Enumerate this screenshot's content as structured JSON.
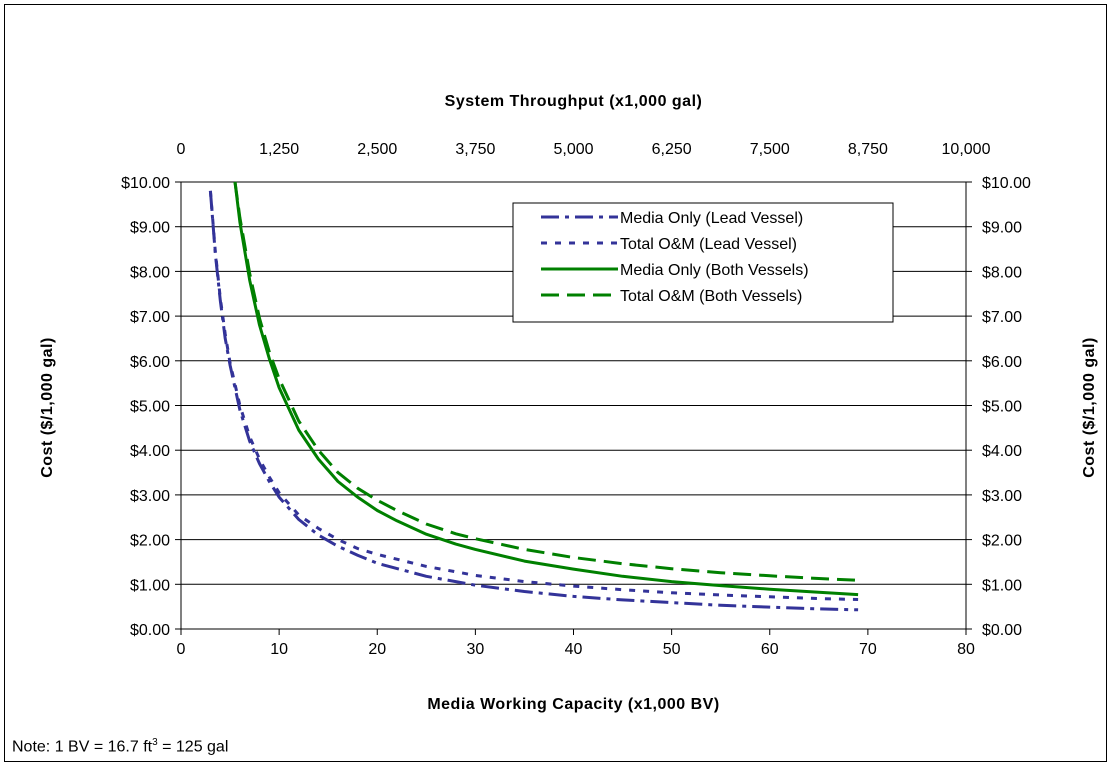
{
  "chart_data": {
    "type": "line",
    "top_axis_title": "System Throughput (x1,000 gal)",
    "top_ticks": [
      "0",
      "1,250",
      "2,500",
      "3,750",
      "5,000",
      "6,250",
      "7,500",
      "8,750",
      "10,000"
    ],
    "xlabel": "Media Working Capacity (x1,000 BV)",
    "x_ticks": [
      "0",
      "10",
      "20",
      "30",
      "40",
      "50",
      "60",
      "70",
      "80"
    ],
    "xlim": [
      0,
      80
    ],
    "ylabel": "Cost ($/1,000 gal)",
    "ylabel_right": "Cost ($/1,000 gal)",
    "y_ticks": [
      "$0.00",
      "$1.00",
      "$2.00",
      "$3.00",
      "$4.00",
      "$5.00",
      "$6.00",
      "$7.00",
      "$8.00",
      "$9.00",
      "$10.00"
    ],
    "ylim": [
      0,
      10
    ],
    "grid": "horizontal",
    "legend_position": "top-right",
    "series": [
      {
        "name": "Media Only (Lead Vessel)",
        "color": "#333399",
        "dash": "long-dash-dot",
        "x": [
          3,
          3.5,
          4,
          4.5,
          5,
          6,
          7,
          8,
          9,
          10,
          12,
          14,
          16,
          18,
          20,
          25,
          30,
          35,
          40,
          45,
          50,
          55,
          60,
          65,
          69
        ],
        "y": [
          9.8,
          8.4,
          7.35,
          6.5,
          5.9,
          4.9,
          4.2,
          3.7,
          3.3,
          2.95,
          2.45,
          2.1,
          1.85,
          1.65,
          1.47,
          1.18,
          0.98,
          0.84,
          0.73,
          0.65,
          0.59,
          0.53,
          0.49,
          0.45,
          0.43
        ]
      },
      {
        "name": "Total O&M (Lead Vessel)",
        "color": "#333399",
        "dash": "short-dash",
        "x": [
          3,
          3.5,
          4,
          4.5,
          5,
          6,
          7,
          8,
          9,
          10,
          12,
          14,
          16,
          18,
          20,
          25,
          30,
          35,
          40,
          45,
          50,
          55,
          60,
          65,
          69
        ],
        "y": [
          9.8,
          8.45,
          7.4,
          6.6,
          5.95,
          5.0,
          4.3,
          3.8,
          3.4,
          3.05,
          2.55,
          2.25,
          2.0,
          1.8,
          1.67,
          1.4,
          1.2,
          1.06,
          0.96,
          0.88,
          0.81,
          0.76,
          0.72,
          0.68,
          0.66
        ]
      },
      {
        "name": "Media Only (Both Vessels)",
        "color": "#008000",
        "dash": "solid",
        "x": [
          5.5,
          6,
          7,
          8,
          9,
          10,
          12,
          14,
          16,
          18,
          20,
          22,
          25,
          28,
          30,
          35,
          40,
          45,
          50,
          55,
          60,
          65,
          69
        ],
        "y": [
          10,
          9.1,
          7.8,
          6.8,
          6.05,
          5.4,
          4.45,
          3.8,
          3.3,
          2.95,
          2.65,
          2.42,
          2.12,
          1.9,
          1.78,
          1.52,
          1.34,
          1.18,
          1.06,
          0.97,
          0.89,
          0.82,
          0.77
        ]
      },
      {
        "name": "Total O&M (Both Vessels)",
        "color": "#008000",
        "dash": "long-dash",
        "x": [
          5.5,
          6,
          7,
          8,
          9,
          10,
          12,
          14,
          16,
          18,
          20,
          22,
          25,
          28,
          30,
          35,
          40,
          45,
          50,
          55,
          60,
          65,
          69
        ],
        "y": [
          10,
          9.2,
          7.95,
          6.95,
          6.2,
          5.6,
          4.65,
          4.0,
          3.5,
          3.15,
          2.88,
          2.65,
          2.35,
          2.13,
          2.02,
          1.78,
          1.6,
          1.46,
          1.35,
          1.26,
          1.19,
          1.13,
          1.09
        ]
      }
    ]
  },
  "note": {
    "text_before": "Note: 1 BV = 16.7 ft",
    "superscript": "3",
    "text_after": " = 125 gal"
  }
}
